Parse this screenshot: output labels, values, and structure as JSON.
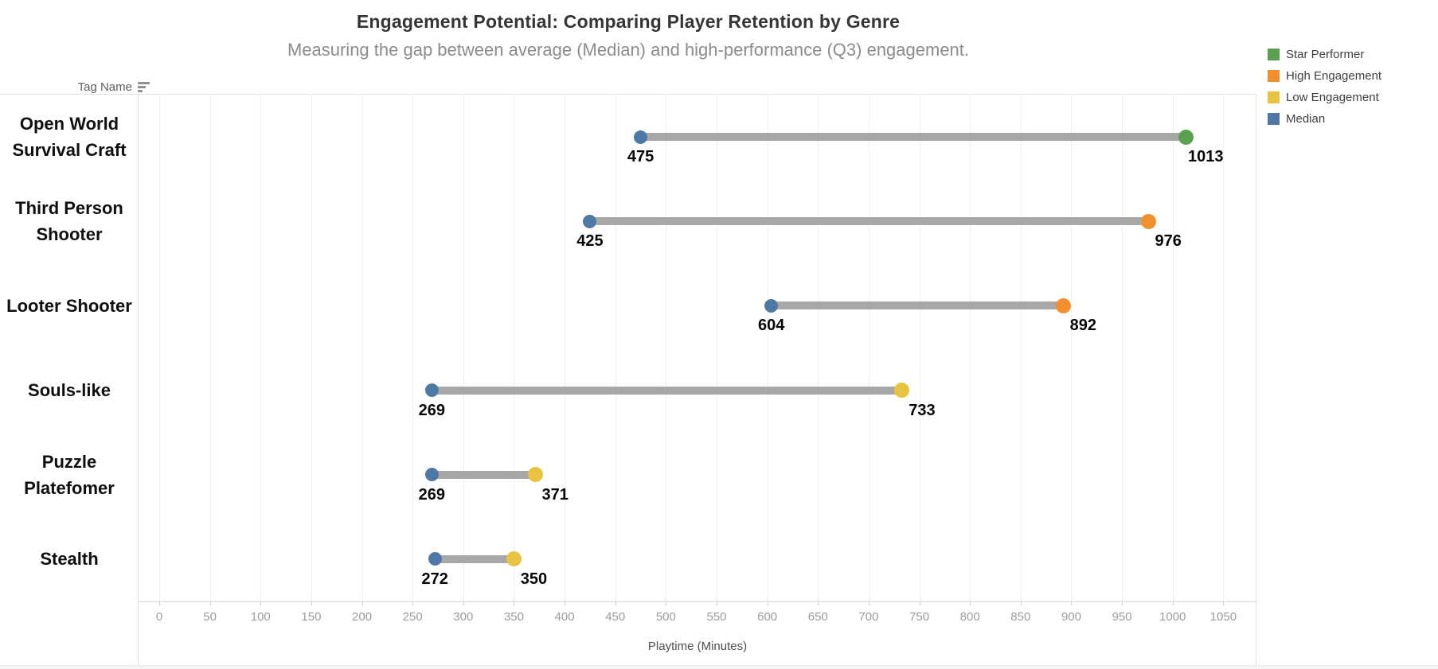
{
  "title": "Engagement Potential: Comparing Player Retention by Genre",
  "subtitle": "Measuring the gap between average (Median) and high-performance (Q3) engagement.",
  "row_header": {
    "label": "Tag Name",
    "sort_icon": "sort-descending-icon"
  },
  "legend": {
    "position": "top-right",
    "items": [
      {
        "label": "Star Performer",
        "color": "#59A14F"
      },
      {
        "label": "High Engagement",
        "color": "#F28E2B"
      },
      {
        "label": "Low Engagement",
        "color": "#E8C33F"
      },
      {
        "label": "Median",
        "color": "#4E79A7"
      }
    ]
  },
  "chart_data": {
    "type": "dumbbell",
    "title": "Engagement Potential: Comparing Player Retention by Genre",
    "subtitle": "Measuring the gap between average (Median) and high-performance (Q3) engagement.",
    "xlabel": "Playtime (Minutes)",
    "ylabel": "Tag Name",
    "xlim": [
      0,
      1083
    ],
    "x_ticks": [
      0,
      50,
      100,
      150,
      200,
      250,
      300,
      350,
      400,
      450,
      500,
      550,
      600,
      650,
      700,
      750,
      800,
      850,
      900,
      950,
      1000,
      1050
    ],
    "grid": "vertical-only",
    "bar_color": "#A8A8A8",
    "categories": [
      "Open World Survival Craft",
      "Third Person Shooter",
      "Looter Shooter",
      "Souls-like",
      "Puzzle Platefomer",
      "Stealth"
    ],
    "series": [
      {
        "name": "Median",
        "values": [
          475,
          425,
          604,
          269,
          269,
          272
        ]
      },
      {
        "name": "Q3",
        "values": [
          1013,
          976,
          892,
          733,
          371,
          350
        ]
      }
    ],
    "rows": [
      {
        "label_lines": [
          "Open World",
          "Survival Craft"
        ],
        "median": 475,
        "q3": 1013,
        "tier": "Star Performer"
      },
      {
        "label_lines": [
          "Third Person",
          "Shooter"
        ],
        "median": 425,
        "q3": 976,
        "tier": "High Engagement"
      },
      {
        "label_lines": [
          "Looter Shooter"
        ],
        "median": 604,
        "q3": 892,
        "tier": "High Engagement"
      },
      {
        "label_lines": [
          "Souls-like"
        ],
        "median": 269,
        "q3": 733,
        "tier": "Low Engagement"
      },
      {
        "label_lines": [
          "Puzzle",
          "Platefomer"
        ],
        "median": 269,
        "q3": 371,
        "tier": "Low Engagement"
      },
      {
        "label_lines": [
          "Stealth"
        ],
        "median": 272,
        "q3": 350,
        "tier": "Low Engagement"
      }
    ]
  }
}
